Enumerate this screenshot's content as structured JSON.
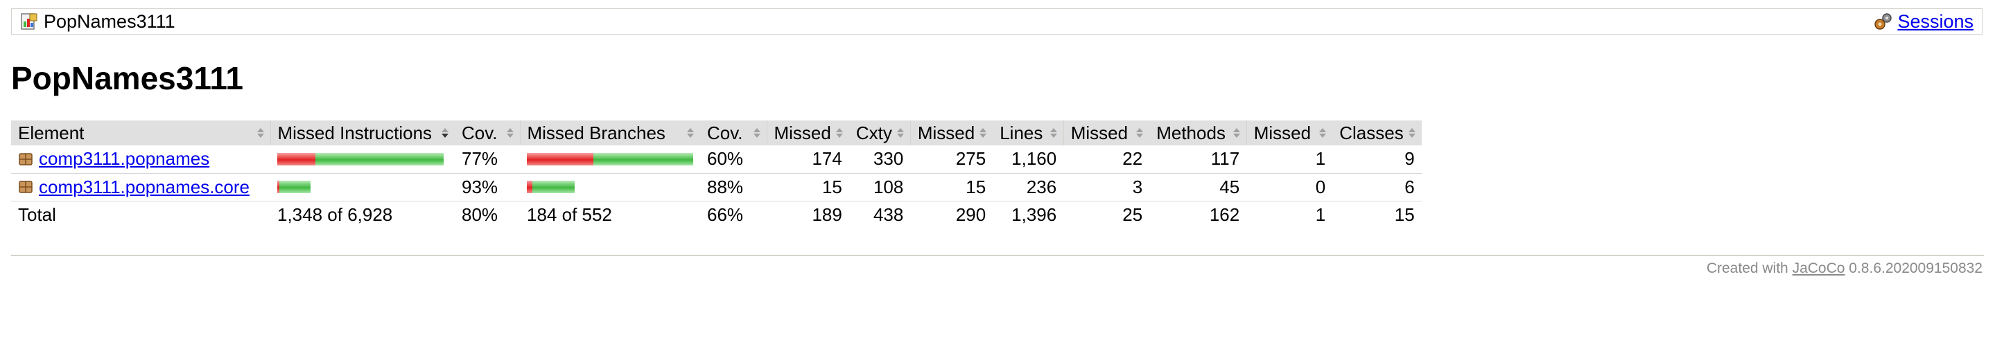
{
  "breadcrumb": {
    "report_name": "PopNames3111",
    "sessions_link": "Sessions",
    "report_icon": "report-icon",
    "sessions_icon": "session-icon"
  },
  "page_title": "PopNames3111",
  "table": {
    "headers": {
      "element": "Element",
      "missed_instructions": "Missed Instructions",
      "cov_instructions": "Cov.",
      "missed_branches": "Missed Branches",
      "cov_branches": "Cov.",
      "missed_cxty": "Missed",
      "cxty": "Cxty",
      "missed_lines": "Missed",
      "lines": "Lines",
      "missed_methods": "Missed",
      "methods": "Methods",
      "missed_classes": "Missed",
      "classes": "Classes"
    },
    "rows": [
      {
        "element": "comp3111.popnames",
        "icon": "package-icon",
        "instr_missed_fraction": 0.23,
        "instr_covered_fraction": 0.77,
        "instr_scale": 1.0,
        "instr_cov": "77%",
        "branch_missed_fraction": 0.4,
        "branch_covered_fraction": 0.6,
        "branch_scale": 1.0,
        "branch_cov": "60%",
        "missed_cxty": "174",
        "cxty": "330",
        "missed_lines": "275",
        "lines": "1,160",
        "missed_methods": "22",
        "methods": "117",
        "missed_classes": "1",
        "classes": "9"
      },
      {
        "element": "comp3111.popnames.core",
        "icon": "package-icon",
        "instr_missed_fraction": 0.07,
        "instr_covered_fraction": 0.93,
        "instr_scale": 0.2,
        "instr_cov": "93%",
        "branch_missed_fraction": 0.12,
        "branch_covered_fraction": 0.88,
        "branch_scale": 0.29,
        "branch_cov": "88%",
        "missed_cxty": "15",
        "cxty": "108",
        "missed_lines": "15",
        "lines": "236",
        "missed_methods": "3",
        "methods": "45",
        "missed_classes": "0",
        "classes": "6"
      }
    ],
    "total": {
      "label": "Total",
      "missed_instructions": "1,348 of 6,928",
      "instr_cov": "80%",
      "missed_branches": "184 of 552",
      "branch_cov": "66%",
      "missed_cxty": "189",
      "cxty": "438",
      "missed_lines": "290",
      "lines": "1,396",
      "missed_methods": "25",
      "methods": "162",
      "missed_classes": "1",
      "classes": "15"
    }
  },
  "footer": {
    "prefix": "Created with",
    "link": "JaCoCo",
    "version": "0.8.6.202009150832"
  },
  "colors": {
    "missed": "#e32121",
    "covered": "#3fb83f",
    "header_bg": "#e0e0e0",
    "link": "#0000ee"
  }
}
